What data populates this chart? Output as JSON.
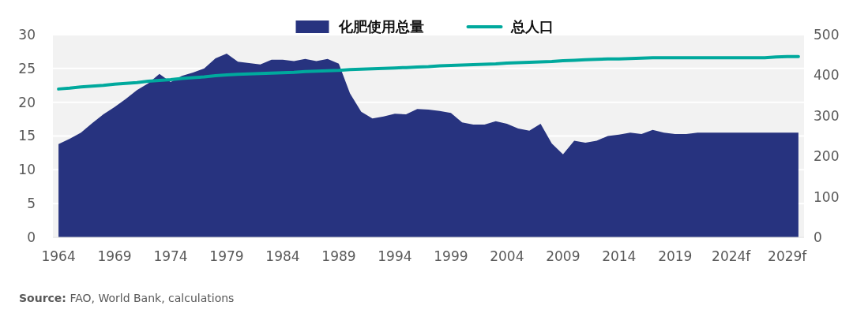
{
  "chart_data": {
    "type": "area",
    "x": [
      1964,
      1965,
      1966,
      1967,
      1968,
      1969,
      1970,
      1971,
      1972,
      1973,
      1974,
      1975,
      1976,
      1977,
      1978,
      1979,
      1980,
      1981,
      1982,
      1983,
      1984,
      1985,
      1986,
      1987,
      1988,
      1989,
      1990,
      1991,
      1992,
      1993,
      1994,
      1995,
      1996,
      1997,
      1998,
      1999,
      2000,
      2001,
      2002,
      2003,
      2004,
      2005,
      2006,
      2007,
      2008,
      2009,
      2010,
      2011,
      2012,
      2013,
      2014,
      2015,
      2016,
      2017,
      2018,
      2019,
      2020,
      2021,
      2022,
      2023,
      2024,
      2025,
      2026,
      2027,
      2028,
      2029,
      2030
    ],
    "series": [
      {
        "name": "化肥使用总量",
        "color": "#27337f",
        "values": [
          13.8,
          14.6,
          15.5,
          16.9,
          18.2,
          19.3,
          20.5,
          21.8,
          22.8,
          24.2,
          23.0,
          23.9,
          24.4,
          25.0,
          26.5,
          27.2,
          26.0,
          25.8,
          25.6,
          26.3,
          26.3,
          26.1,
          26.4,
          26.1,
          26.4,
          25.7,
          21.3,
          18.6,
          17.6,
          17.9,
          18.3,
          18.2,
          19.0,
          18.9,
          18.7,
          18.4,
          17.0,
          16.7,
          16.7,
          17.2,
          16.8,
          16.1,
          15.8,
          16.8,
          13.9,
          12.3,
          14.3,
          14.0,
          14.3,
          15.0,
          15.2,
          15.5,
          15.3,
          15.9,
          15.5,
          15.3,
          15.3,
          15.5,
          15.5,
          15.5,
          15.5,
          15.5,
          15.5,
          15.5,
          15.5,
          15.5,
          15.5
        ]
      },
      {
        "name": "总人口",
        "type": "line",
        "axis": "y2",
        "color": "#00a99d",
        "values": [
          366,
          368,
          371,
          373,
          375,
          378,
          380,
          382,
          385,
          387,
          389,
          392,
          394,
          396,
          399,
          401,
          402,
          403,
          404,
          405,
          406,
          407,
          409,
          410,
          411,
          412,
          414,
          415,
          416,
          417,
          418,
          419,
          420,
          421,
          423,
          424,
          425,
          426,
          427,
          428,
          430,
          431,
          432,
          433,
          434,
          436,
          437,
          438,
          439,
          440,
          440,
          441,
          442,
          443,
          443,
          443,
          443,
          443,
          443,
          443,
          443,
          443,
          443,
          443,
          445,
          446,
          446
        ]
      }
    ],
    "xlim": [
      1963.5,
      2030.5
    ],
    "xticks": [
      1964,
      1969,
      1974,
      1979,
      1984,
      1989,
      1994,
      1999,
      2004,
      2009,
      2014,
      2019,
      {
        "value": 2024,
        "label": "2024f"
      },
      {
        "value": 2029,
        "label": "2029f"
      }
    ],
    "ylim": [
      0,
      30
    ],
    "yticks": [
      0,
      5,
      10,
      15,
      20,
      25,
      30
    ],
    "y2lim": [
      0,
      500
    ],
    "y2ticks": [
      0,
      100,
      200,
      300,
      400,
      500
    ],
    "grid": "y",
    "legend": "top",
    "annotations": [
      "Source: FAO, World Bank, calculations"
    ]
  }
}
